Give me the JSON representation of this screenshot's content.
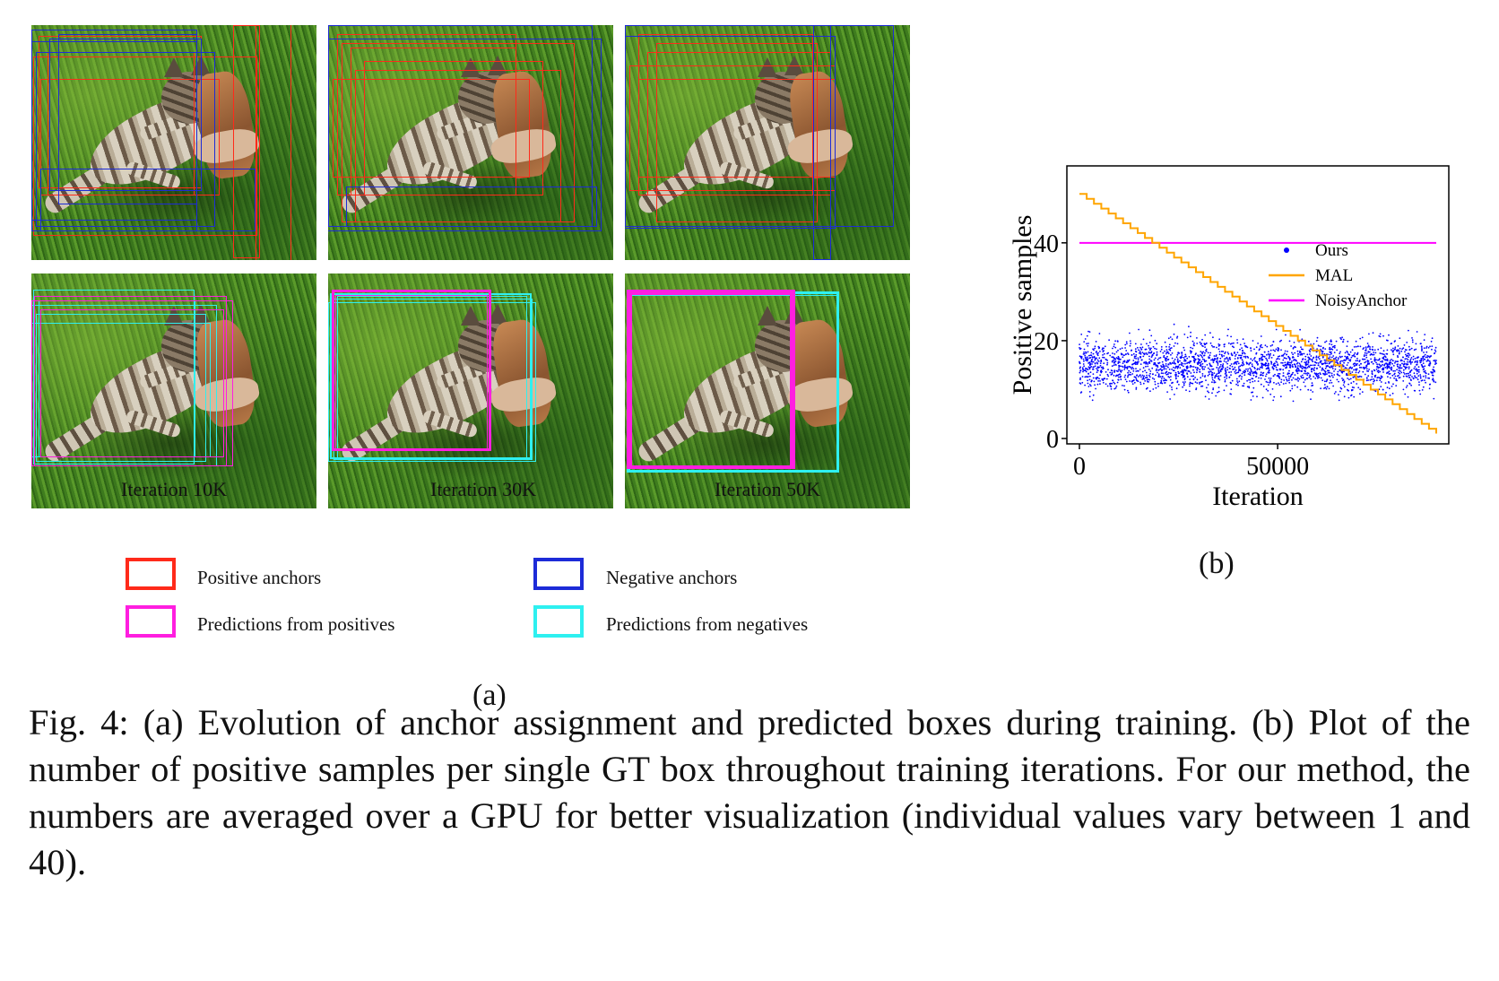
{
  "panels": {
    "iteration_labels": [
      "Iteration 10K",
      "Iteration 30K",
      "Iteration 50K"
    ]
  },
  "legend": {
    "positive_anchors": "Positive anchors",
    "negative_anchors": "Negative anchors",
    "pred_positives": "Predictions from positives",
    "pred_negatives": "Predictions from negatives",
    "colors": {
      "positive_anchors": "#ff2a1a",
      "negative_anchors": "#1d2bd8",
      "pred_positives": "#ff1ee0",
      "pred_negatives": "#2ef0f0"
    }
  },
  "subfig_labels": {
    "a": "(a)",
    "b": "(b)"
  },
  "chart_data": {
    "type": "scatter",
    "xlabel": "Iteration",
    "ylabel": "Positive samples",
    "xlim": [
      0,
      90000
    ],
    "ylim": [
      0,
      55
    ],
    "xticks": [
      0,
      50000
    ],
    "yticks": [
      0,
      20,
      40
    ],
    "legend_position": "right",
    "series": [
      {
        "name": "Ours",
        "kind": "scatter",
        "color": "#0000ff",
        "description_values": {
          "mean": 15,
          "min": 5,
          "max": 27
        }
      },
      {
        "name": "MAL",
        "kind": "step-line",
        "color": "#ffa500",
        "x": [
          0,
          90000
        ],
        "y": [
          50,
          1
        ]
      },
      {
        "name": "NoisyAnchor",
        "kind": "line",
        "color": "#ff00ff",
        "x": [
          0,
          90000
        ],
        "y": [
          40,
          40
        ]
      }
    ]
  },
  "caption": "Fig. 4: (a) Evolution of anchor assignment and predicted boxes during training. (b) Plot of the number of positive samples per single GT box throughout training iterations. For our method, the numbers are averaged over a GPU for better visualization (individual values vary between 1 and 40)."
}
